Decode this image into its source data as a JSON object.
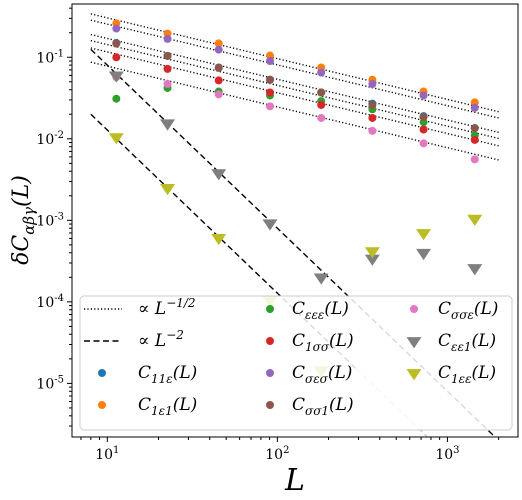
{
  "chart_data": {
    "type": "scatter",
    "xlabel": "L",
    "ylabel": "δC_{αβγ}(L)",
    "xscale": "log",
    "yscale": "log",
    "xlim": [
      6.2,
      2600
    ],
    "ylim": [
      2.2e-06,
      0.45
    ],
    "legend_position": "bottom-left",
    "x_ticks": [
      {
        "value": 10,
        "mantissa": "10",
        "exp": "1"
      },
      {
        "value": 100,
        "mantissa": "10",
        "exp": "2"
      },
      {
        "value": 1000,
        "mantissa": "10",
        "exp": "3"
      }
    ],
    "y_ticks": [
      {
        "value": 1e-05,
        "mantissa": "10",
        "exp": "-5"
      },
      {
        "value": 0.0001,
        "mantissa": "10",
        "exp": "-4"
      },
      {
        "value": 0.001,
        "mantissa": "10",
        "exp": "-3"
      },
      {
        "value": 0.01,
        "mantissa": "10",
        "exp": "-2"
      },
      {
        "value": 0.1,
        "mantissa": "10",
        "exp": "-1"
      }
    ],
    "x_values": [
      11.3,
      22.6,
      45.2,
      90.5,
      181,
      362,
      724,
      1448
    ],
    "series": [
      {
        "id": "c11e",
        "label_base": "C",
        "label_sub": "11ε",
        "label_arg": "(L)",
        "marker": "circle",
        "color": "#1f77b4",
        "values": [
          0.15,
          0.104,
          0.075,
          0.053,
          0.037,
          0.027,
          0.019,
          0.0135
        ]
      },
      {
        "id": "c1e1",
        "label_base": "C",
        "label_sub": "1ε1",
        "label_arg": "(L)",
        "marker": "circle",
        "color": "#ff7f0e",
        "values": [
          0.26,
          0.195,
          0.148,
          0.105,
          0.075,
          0.053,
          0.038,
          0.028
        ]
      },
      {
        "id": "ceee",
        "label_base": "C",
        "label_sub": "εεε",
        "label_arg": "(L)",
        "marker": "circle",
        "color": "#2ca02c",
        "values": [
          0.031,
          0.042,
          0.038,
          0.034,
          0.029,
          0.023,
          0.016,
          0.011
        ]
      },
      {
        "id": "c1se",
        "label_base": "C",
        "label_sub": "1σσ",
        "label_arg": "(L)",
        "marker": "circle",
        "color": "#d62728",
        "values": [
          0.1,
          0.072,
          0.052,
          0.037,
          0.026,
          0.018,
          0.013,
          0.0097
        ]
      },
      {
        "id": "csee",
        "label_base": "C",
        "label_sub": "σεσ",
        "label_arg": "(L)",
        "marker": "circle",
        "color": "#9467bd",
        "values": [
          0.225,
          0.168,
          0.124,
          0.09,
          0.065,
          0.047,
          0.034,
          0.024
        ]
      },
      {
        "id": "cso1",
        "label_base": "C",
        "label_sub": "σσ1",
        "label_arg": "(L)",
        "marker": "circle",
        "color": "#8c564b",
        "values": [
          0.147,
          0.104,
          0.074,
          0.053,
          0.037,
          0.026,
          0.0185,
          0.0135
        ]
      },
      {
        "id": "csse",
        "label_base": "C",
        "label_sub": "σσε",
        "label_arg": "(L)",
        "marker": "circle",
        "color": "#e377c2",
        "values": [
          0.057,
          0.047,
          0.035,
          0.025,
          0.018,
          0.0125,
          0.0088,
          0.0056
        ]
      },
      {
        "id": "cee1",
        "label_base": "C",
        "label_sub": "εε1",
        "label_arg": "(L)",
        "marker": "triangle-down",
        "color": "#7f7f7f",
        "values": [
          0.06,
          0.0155,
          0.0038,
          0.00092,
          0.0002,
          0.00034,
          0.0004,
          0.00026
        ]
      },
      {
        "id": "c1ee",
        "label_base": "C",
        "label_sub": "1εε",
        "label_arg": "(L)",
        "marker": "triangle-down",
        "color": "#bcbd22",
        "values": [
          0.0105,
          0.0025,
          0.00061,
          0.000105,
          1.45e-05,
          0.00042,
          0.0007,
          0.00105
        ]
      }
    ],
    "reference_lines": [
      {
        "id": "ref-half-1",
        "style": "dotted",
        "color": "#000000",
        "x": [
          8,
          2000
        ],
        "y": [
          0.34,
          0.0215
        ]
      },
      {
        "id": "ref-half-2",
        "style": "dotted",
        "color": "#000000",
        "x": [
          8,
          2000
        ],
        "y": [
          0.285,
          0.018
        ]
      },
      {
        "id": "ref-half-3",
        "style": "dotted",
        "color": "#000000",
        "x": [
          8,
          2000
        ],
        "y": [
          0.19,
          0.012
        ]
      },
      {
        "id": "ref-half-4",
        "style": "dotted",
        "color": "#000000",
        "x": [
          8,
          2000
        ],
        "y": [
          0.16,
          0.0101
        ]
      },
      {
        "id": "ref-half-5",
        "style": "dotted",
        "color": "#000000",
        "x": [
          8,
          2000
        ],
        "y": [
          0.13,
          0.0082
        ]
      },
      {
        "id": "ref-half-6",
        "style": "dotted",
        "color": "#000000",
        "x": [
          8,
          2000
        ],
        "y": [
          0.087,
          0.0055
        ]
      },
      {
        "id": "ref-inv2-1",
        "style": "dashed",
        "color": "#000000",
        "x": [
          8,
          2000
        ],
        "y": [
          0.125,
          2e-06
        ]
      },
      {
        "id": "ref-inv2-2",
        "style": "dashed",
        "color": "#000000",
        "x": [
          8,
          290
        ],
        "y": [
          0.02,
          1.52e-05
        ]
      },
      {
        "id": "ref-inv2-3",
        "style": "dashed",
        "color": "#c8c8c8",
        "x": [
          290,
          2000
        ],
        "y": [
          1.52e-05,
          3.2e-07
        ]
      }
    ],
    "legend": [
      {
        "kind": "line",
        "style": "dotted",
        "label": "∝ L",
        "exp": "−1/2"
      },
      {
        "kind": "line",
        "style": "dashed",
        "label": "∝ L",
        "exp": "−2"
      },
      {
        "kind": "series",
        "ref": "c11e"
      },
      {
        "kind": "series",
        "ref": "c1e1"
      },
      {
        "kind": "series",
        "ref": "ceee"
      },
      {
        "kind": "series",
        "ref": "c1se"
      },
      {
        "kind": "series",
        "ref": "csee"
      },
      {
        "kind": "series",
        "ref": "cso1"
      },
      {
        "kind": "series",
        "ref": "csse"
      },
      {
        "kind": "series",
        "ref": "cee1"
      },
      {
        "kind": "series",
        "ref": "c1ee"
      }
    ]
  }
}
